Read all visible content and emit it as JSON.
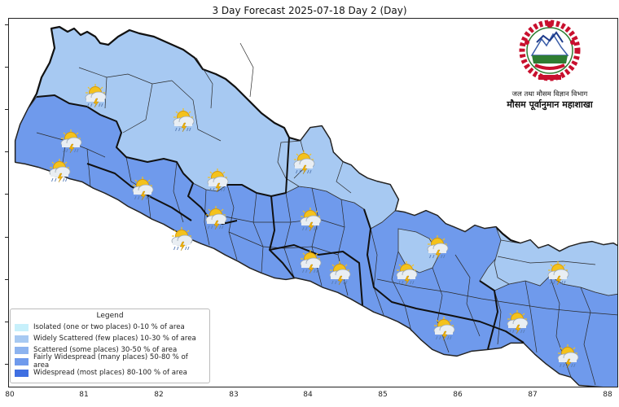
{
  "title": "3 Day Forecast 2025-07-18 Day 2 (Day)",
  "agency": {
    "name_line1": "जल तथा मौसम विज्ञान विभाग",
    "name_line2": "मौसम पूर्वानुमान महाशाखा"
  },
  "axes": {
    "x_ticks": [
      "80",
      "81",
      "82",
      "83",
      "84",
      "85",
      "86",
      "87",
      "88"
    ]
  },
  "legend": {
    "title": "Legend",
    "items": [
      {
        "label": "Isolated (one or two places)  0-10 % of area",
        "color": "#c7f0fb"
      },
      {
        "label": "Widely Scattered (few places) 10-30 % of area",
        "color": "#a7c9f2"
      },
      {
        "label": "Scattered (some places) 30-50  % of area",
        "color": "#8db3ef"
      },
      {
        "label": "Fairly Widespread (many places) 50-80 % of area",
        "color": "#6f9aec"
      },
      {
        "label": "Widespread (most places) 80-100 % of area",
        "color": "#3f6fe2"
      }
    ]
  },
  "colors": {
    "widely_scattered": "#a7c9f2",
    "fairly_widespread": "#6f9aec",
    "boundary": "#111111"
  },
  "map": {
    "region": "Nepal",
    "weather_icon": "sun-cloud-thunder-rain-icon"
  }
}
